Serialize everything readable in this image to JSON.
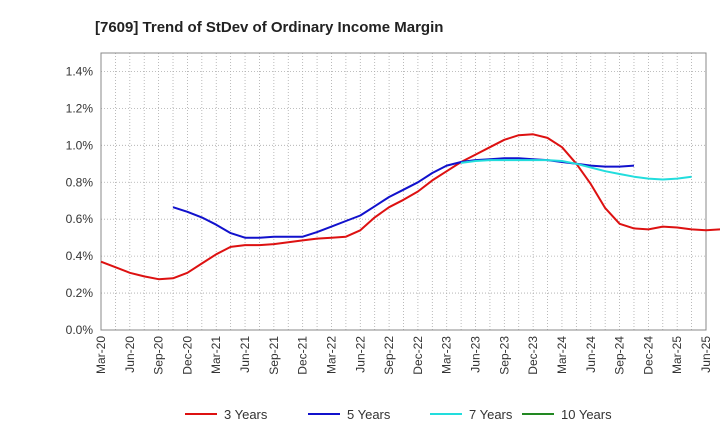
{
  "chart_data": {
    "type": "line",
    "title": "[7609]  Trend of StDev of Ordinary Income Margin",
    "xlabel": "",
    "ylabel": "",
    "x_ticks": [
      "Mar-20",
      "Jun-20",
      "Sep-20",
      "Dec-20",
      "Mar-21",
      "Jun-21",
      "Sep-21",
      "Dec-21",
      "Mar-22",
      "Jun-22",
      "Sep-22",
      "Dec-22",
      "Mar-23",
      "Jun-23",
      "Sep-23",
      "Dec-23",
      "Mar-24",
      "Jun-24",
      "Sep-24",
      "Dec-24",
      "Mar-25",
      "Jun-25"
    ],
    "y_ticks": [
      "0.0%",
      "0.2%",
      "0.4%",
      "0.6%",
      "0.8%",
      "1.0%",
      "1.2%",
      "1.4%"
    ],
    "ylim": [
      0,
      1.5
    ],
    "y_unit": "%",
    "grid": true,
    "legend_position": "bottom",
    "series": [
      {
        "name": "3 Years",
        "color": "#dd1111",
        "start_index": 0,
        "values": [
          0.37,
          0.34,
          0.31,
          0.29,
          0.275,
          0.28,
          0.31,
          0.36,
          0.41,
          0.45,
          0.46,
          0.46,
          0.465,
          0.475,
          0.485,
          0.495,
          0.5,
          0.505,
          0.54,
          0.61,
          0.665,
          0.705,
          0.75,
          0.81,
          0.86,
          0.91,
          0.95,
          0.99,
          1.03,
          1.055,
          1.06,
          1.04,
          0.99,
          0.9,
          0.79,
          0.66,
          0.575,
          0.55,
          0.545,
          0.56,
          0.555,
          0.545,
          0.54,
          0.545
        ]
      },
      {
        "name": "5 Years",
        "color": "#1111cc",
        "start_index": 5,
        "values": [
          0.665,
          0.64,
          0.61,
          0.57,
          0.525,
          0.5,
          0.5,
          0.505,
          0.505,
          0.505,
          0.53,
          0.56,
          0.59,
          0.62,
          0.67,
          0.72,
          0.76,
          0.8,
          0.85,
          0.89,
          0.91,
          0.92,
          0.925,
          0.93,
          0.93,
          0.925,
          0.92,
          0.91,
          0.9,
          0.89,
          0.885,
          0.885,
          0.89
        ]
      },
      {
        "name": "7 Years",
        "color": "#22dddd",
        "start_index": 25,
        "values": [
          0.905,
          0.915,
          0.92,
          0.92,
          0.92,
          0.92,
          0.92,
          0.915,
          0.9,
          0.88,
          0.86,
          0.845,
          0.83,
          0.82,
          0.815,
          0.82,
          0.83
        ]
      },
      {
        "name": "10 Years",
        "color": "#228822",
        "start_index": 0,
        "values": []
      }
    ]
  }
}
